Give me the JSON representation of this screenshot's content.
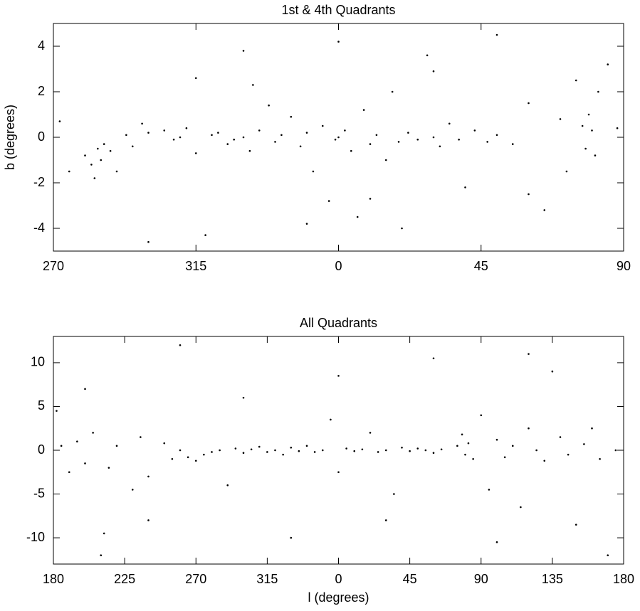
{
  "chart_data": [
    {
      "type": "scatter",
      "title": "1st & 4th Quadrants",
      "ylabel": "b (degrees)",
      "color": "#000000",
      "xlim": [
        -90,
        90
      ],
      "xticks": [
        {
          "value": -90,
          "label": "270"
        },
        {
          "value": -45,
          "label": "315"
        },
        0,
        45,
        90
      ],
      "ylim": [
        -5,
        5
      ],
      "yticks": [
        -4,
        -2,
        0,
        2,
        4
      ],
      "x": [
        -88,
        -85,
        -80,
        -78,
        -77,
        -76,
        -75,
        -74,
        -72,
        -70,
        -67,
        -65,
        -62,
        -60,
        -55,
        -52,
        -50,
        -48,
        -45,
        -42,
        -40,
        -38,
        -35,
        -33,
        -30,
        -28,
        -27,
        -25,
        -22,
        -20,
        -18,
        -15,
        -12,
        -10,
        -8,
        -5,
        -3,
        -1,
        0,
        2,
        4,
        6,
        8,
        10,
        12,
        15,
        17,
        19,
        22,
        25,
        28,
        30,
        32,
        35,
        38,
        40,
        43,
        47,
        50,
        55,
        60,
        65,
        70,
        72,
        75,
        77,
        78,
        79,
        80,
        81,
        82,
        85,
        88,
        -60,
        -30,
        0,
        20,
        50,
        -10,
        30,
        10,
        -45,
        60
      ],
      "y": [
        0.7,
        -1.5,
        -0.8,
        -1.2,
        -1.8,
        -0.5,
        -1.0,
        -0.3,
        -0.6,
        -1.5,
        0.1,
        -0.4,
        0.6,
        0.2,
        0.3,
        -0.1,
        0.0,
        0.4,
        -0.7,
        -4.3,
        0.1,
        0.2,
        -0.3,
        -0.1,
        0.0,
        -0.6,
        2.3,
        0.3,
        1.4,
        -0.2,
        0.1,
        0.9,
        -0.4,
        0.2,
        -1.5,
        0.5,
        -2.8,
        -0.1,
        0.0,
        0.3,
        -0.6,
        -3.5,
        1.2,
        -0.3,
        0.1,
        -1.0,
        2.0,
        -0.2,
        0.2,
        -0.1,
        3.6,
        0.0,
        -0.4,
        0.6,
        -0.1,
        -2.2,
        0.3,
        -0.2,
        0.1,
        -0.3,
        1.5,
        -3.2,
        0.8,
        -1.5,
        2.5,
        0.5,
        -0.5,
        1.0,
        0.3,
        -0.8,
        2.0,
        3.2,
        0.4,
        -4.6,
        3.8,
        4.2,
        -4.0,
        4.5,
        -3.8,
        2.9,
        -2.7,
        2.6,
        -2.5
      ]
    },
    {
      "type": "scatter",
      "title": "All Quadrants",
      "xlabel": "l (degrees)",
      "color": "#000000",
      "xlim": [
        -180,
        180
      ],
      "xticks": [
        {
          "value": -180,
          "label": "180"
        },
        {
          "value": -135,
          "label": "225"
        },
        {
          "value": -90,
          "label": "270"
        },
        {
          "value": -45,
          "label": "315"
        },
        0,
        45,
        90,
        135,
        180
      ],
      "ylim": [
        -13,
        13
      ],
      "yticks": [
        -10,
        -5,
        0,
        5,
        10
      ],
      "x": [
        -178,
        -175,
        -170,
        -165,
        -160,
        -155,
        -150,
        -148,
        -145,
        -140,
        -130,
        -125,
        -120,
        -110,
        -105,
        -100,
        -95,
        -90,
        -85,
        -80,
        -75,
        -70,
        -65,
        -60,
        -55,
        -50,
        -45,
        -40,
        -35,
        -30,
        -25,
        -20,
        -15,
        -10,
        -5,
        0,
        5,
        10,
        15,
        20,
        25,
        30,
        35,
        40,
        45,
        50,
        55,
        60,
        65,
        75,
        78,
        80,
        82,
        85,
        90,
        95,
        100,
        105,
        110,
        115,
        120,
        125,
        130,
        135,
        140,
        145,
        150,
        155,
        160,
        165,
        170,
        175,
        -160,
        -120,
        -60,
        0,
        60,
        120,
        -30,
        30,
        -100,
        100
      ],
      "y": [
        4.5,
        0.5,
        -2.5,
        1.0,
        -1.5,
        2.0,
        -12.0,
        -9.5,
        -2.0,
        0.5,
        -4.5,
        1.5,
        -3.0,
        0.8,
        -1.0,
        0.0,
        -0.8,
        -1.2,
        -0.5,
        -0.2,
        0.0,
        -4.0,
        0.2,
        -0.3,
        0.1,
        0.4,
        -0.2,
        0.0,
        -0.5,
        0.3,
        -0.1,
        0.5,
        -0.2,
        0.0,
        3.5,
        -2.5,
        0.2,
        -0.1,
        0.1,
        2.0,
        -0.2,
        0.0,
        -5.0,
        0.3,
        -0.1,
        0.2,
        0.0,
        -0.3,
        0.1,
        0.5,
        1.8,
        -0.5,
        0.8,
        -1.0,
        4.0,
        -4.5,
        1.2,
        -0.8,
        0.5,
        -6.5,
        2.5,
        0.0,
        -1.2,
        9.0,
        1.5,
        -0.5,
        -8.5,
        0.7,
        2.5,
        -1.0,
        -12.0,
        0.0,
        7.0,
        -8.0,
        6.0,
        8.5,
        10.5,
        11.0,
        -10.0,
        -8.0,
        12.0,
        -10.5
      ]
    }
  ]
}
